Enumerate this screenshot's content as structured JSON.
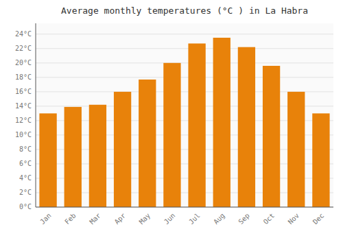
{
  "chart_data": {
    "type": "bar",
    "title": "Average monthly temperatures (°C ) in La Habra",
    "categories": [
      "Jan",
      "Feb",
      "Mar",
      "Apr",
      "May",
      "Jun",
      "Jul",
      "Aug",
      "Sep",
      "Oct",
      "Nov",
      "Dec"
    ],
    "values": [
      13.0,
      13.9,
      14.2,
      16.0,
      17.7,
      20.0,
      22.7,
      23.5,
      22.2,
      19.6,
      16.0,
      13.0
    ],
    "color": "#E8820A",
    "ylim": [
      0,
      25.5
    ],
    "yticks": [
      {
        "value": 0,
        "label": "0°C"
      },
      {
        "value": 2,
        "label": "2°C"
      },
      {
        "value": 4,
        "label": "4°C"
      },
      {
        "value": 6,
        "label": "6°C"
      },
      {
        "value": 8,
        "label": "8°C"
      },
      {
        "value": 10,
        "label": "10°C"
      },
      {
        "value": 12,
        "label": "12°C"
      },
      {
        "value": 14,
        "label": "14°C"
      },
      {
        "value": 16,
        "label": "16°C"
      },
      {
        "value": 18,
        "label": "18°C"
      },
      {
        "value": 20,
        "label": "20°C"
      },
      {
        "value": 22,
        "label": "22°C"
      },
      {
        "value": 24,
        "label": "24°C"
      }
    ],
    "grid": true
  }
}
